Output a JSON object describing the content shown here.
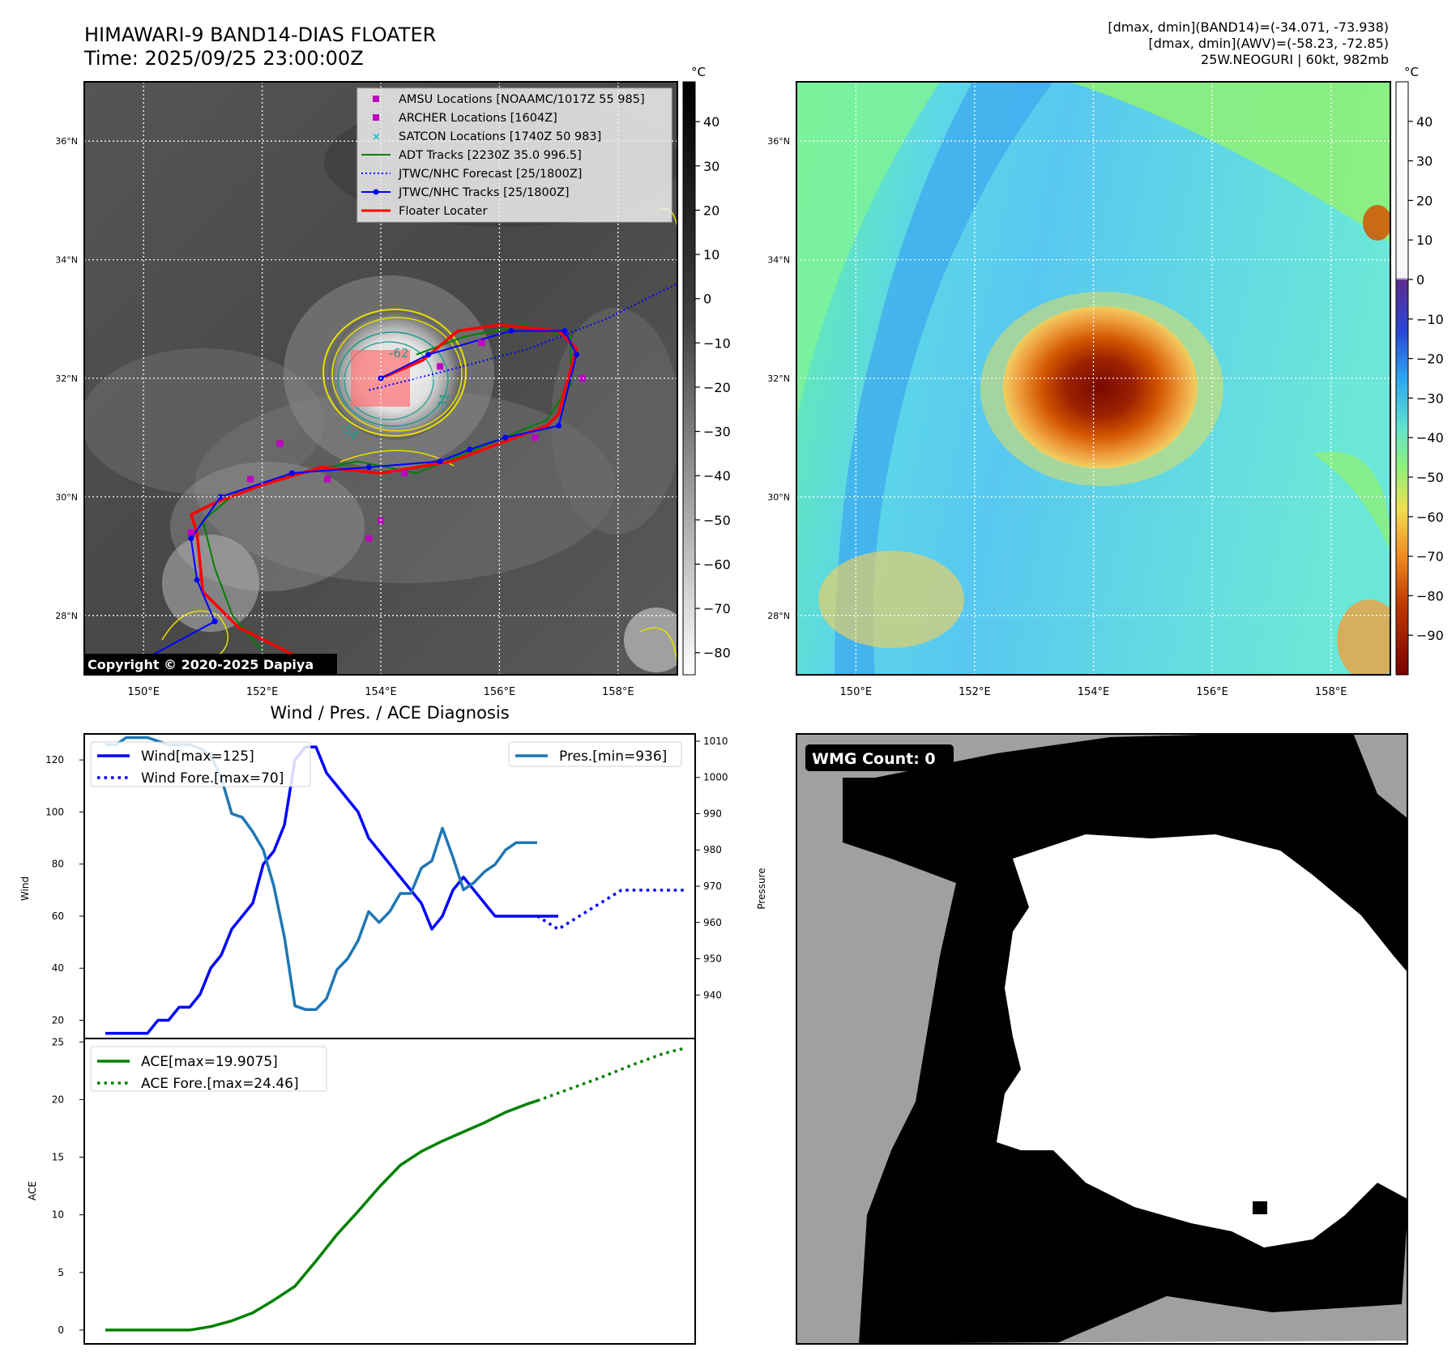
{
  "header": {
    "title_line1": "HIMAWARI-9 BAND14-DIAS FLOATER",
    "title_line2": "Time: 2025/09/25 23:00:00Z",
    "info_line1": "[dmax, dmin](BAND14)=(-34.071, -73.938)",
    "info_line2": "[dmax, dmin](AWV)=(-58.23, -72.85)",
    "info_line3": "25W.NEOGURI | 60kt, 982mb"
  },
  "map": {
    "lat_labels": [
      "28°N",
      "30°N",
      "32°N",
      "34°N",
      "36°N"
    ],
    "lat_values": [
      28,
      30,
      32,
      34,
      36
    ],
    "lon_labels": [
      "150°E",
      "152°E",
      "154°E",
      "156°E",
      "158°E"
    ],
    "lon_values": [
      150,
      152,
      154,
      156,
      158
    ],
    "lon_range": [
      149,
      159
    ],
    "lat_range": [
      27,
      37
    ],
    "copyright": "Copyright © 2020-2025 Dapiya",
    "contour_labels": [
      "-62",
      "-31",
      "-54"
    ],
    "legend": [
      {
        "label": "AMSU Locations [NOAAMC/1017Z 55 985]",
        "icon": "magenta-square"
      },
      {
        "label": "ARCHER Locations [1604Z]",
        "icon": "magenta-square"
      },
      {
        "label": "SATCON Locations [1740Z 50 983]",
        "icon": "cyan-x"
      },
      {
        "label": "ADT Tracks [2230Z 35.0 996.5]",
        "icon": "green-line"
      },
      {
        "label": "JTWC/NHC Forecast [25/1800Z]",
        "icon": "blue-dotted-line"
      },
      {
        "label": "JTWC/NHC Tracks [25/1800Z]",
        "icon": "blue-line-dots"
      },
      {
        "label": "Floater Locater",
        "icon": "red-line"
      }
    ],
    "colors": {
      "amsu": "#c000c0",
      "satcon": "#17becf",
      "adt": "#008000",
      "jtwc": "#0000ff",
      "floater": "#ff0000"
    }
  },
  "colorbar_gray": {
    "unit": "°C",
    "ticks": [
      "40",
      "30",
      "20",
      "10",
      "0",
      "−10",
      "−20",
      "−30",
      "−40",
      "−50",
      "−60",
      "−70",
      "−80"
    ],
    "tick_values": [
      40,
      30,
      20,
      10,
      0,
      -10,
      -20,
      -30,
      -40,
      -50,
      -60,
      -70,
      -80
    ],
    "range": [
      -85,
      49
    ]
  },
  "colorbar_color": {
    "unit": "°C",
    "ticks": [
      "40",
      "30",
      "20",
      "10",
      "0",
      "−10",
      "−20",
      "−30",
      "−40",
      "−50",
      "−60",
      "−70",
      "−80",
      "−90"
    ],
    "tick_values": [
      40,
      30,
      20,
      10,
      0,
      -10,
      -20,
      -30,
      -40,
      -50,
      -60,
      -70,
      -80,
      -90
    ],
    "range": [
      -100,
      50
    ]
  },
  "wmg": {
    "label": "WMG Count: 0"
  },
  "chart_data": [
    {
      "type": "line",
      "title": "Wind / Pres. / ACE Diagnosis",
      "ylabel": "Wind",
      "ylabel_right": "Pressure",
      "ylim": [
        13,
        130
      ],
      "ylim_right": [
        928,
        1012
      ],
      "yticks": [
        20,
        40,
        60,
        80,
        100,
        120
      ],
      "yticks_right": [
        940,
        950,
        960,
        970,
        980,
        990,
        1000,
        1010
      ],
      "xlim": [
        -2,
        56
      ],
      "legend_left": [
        "Wind[max=125]",
        "Wind Fore.[max=70]"
      ],
      "legend_right": [
        "Pres.[min=936]"
      ],
      "series": [
        {
          "name": "Wind[max=125]",
          "color": "#0000ff",
          "style": "solid",
          "axis": "left",
          "x": [
            0,
            1,
            2,
            3,
            4,
            5,
            6,
            7,
            8,
            9,
            10,
            11,
            12,
            13,
            14,
            15,
            16,
            17,
            18,
            19,
            20,
            21,
            22,
            23,
            24,
            25,
            26,
            27,
            28,
            29,
            30,
            31,
            32,
            33,
            34,
            35,
            36,
            37,
            38,
            39,
            40,
            41,
            42,
            43
          ],
          "values": [
            15,
            15,
            15,
            15,
            15,
            20,
            20,
            25,
            25,
            30,
            40,
            45,
            55,
            60,
            65,
            80,
            85,
            95,
            120,
            125,
            125,
            115,
            110,
            105,
            100,
            90,
            85,
            80,
            75,
            70,
            65,
            55,
            60,
            70,
            75,
            70,
            65,
            60,
            60,
            60,
            60,
            60,
            60,
            60
          ]
        },
        {
          "name": "Wind Fore.[max=70]",
          "color": "#0000ff",
          "style": "dotted",
          "axis": "left",
          "x": [
            41,
            43,
            45,
            47,
            49,
            51,
            53,
            55
          ],
          "values": [
            60,
            55,
            60,
            65,
            70,
            70,
            70,
            70
          ]
        },
        {
          "name": "Pres.[min=936]",
          "color": "#1f77b4",
          "style": "solid",
          "axis": "right",
          "x": [
            0,
            1,
            2,
            3,
            4,
            5,
            6,
            7,
            8,
            9,
            10,
            11,
            12,
            13,
            14,
            15,
            16,
            17,
            18,
            19,
            20,
            21,
            22,
            23,
            24,
            25,
            26,
            27,
            28,
            29,
            30,
            31,
            32,
            33,
            34,
            35,
            36,
            37,
            38,
            39,
            40,
            41
          ],
          "values": [
            1009,
            1009,
            1011,
            1011,
            1011,
            1010,
            1009,
            1009,
            1009,
            1008,
            1006,
            1000,
            990,
            989,
            985,
            980,
            970,
            956,
            937,
            936,
            936,
            939,
            947,
            950,
            955,
            963,
            960,
            963,
            968,
            968,
            975,
            977,
            986,
            978,
            969,
            971,
            974,
            976,
            980,
            982,
            982,
            982
          ]
        }
      ]
    },
    {
      "type": "line",
      "ylabel": "ACE",
      "ylim": [
        -1.2,
        25.3
      ],
      "yticks": [
        0,
        5,
        10,
        15,
        20,
        25
      ],
      "xlim": [
        -2,
        56
      ],
      "legend": [
        "ACE[max=19.9075]",
        "ACE Fore.[max=24.46]"
      ],
      "series": [
        {
          "name": "ACE[max=19.9075]",
          "color": "#008000",
          "style": "solid",
          "x": [
            0,
            4,
            8,
            10,
            12,
            14,
            16,
            18,
            20,
            22,
            24,
            26,
            28,
            30,
            32,
            34,
            36,
            38,
            40,
            41
          ],
          "values": [
            0,
            0,
            0,
            0.3,
            0.8,
            1.5,
            2.6,
            3.8,
            6,
            8.3,
            10.3,
            12.4,
            14.3,
            15.5,
            16.4,
            17.2,
            18,
            18.9,
            19.6,
            19.9
          ]
        },
        {
          "name": "ACE Fore.[max=24.46]",
          "color": "#008000",
          "style": "dotted",
          "x": [
            41,
            44,
            47,
            50,
            53,
            55
          ],
          "values": [
            19.9,
            20.9,
            21.9,
            23.0,
            24.0,
            24.46
          ]
        }
      ]
    }
  ]
}
